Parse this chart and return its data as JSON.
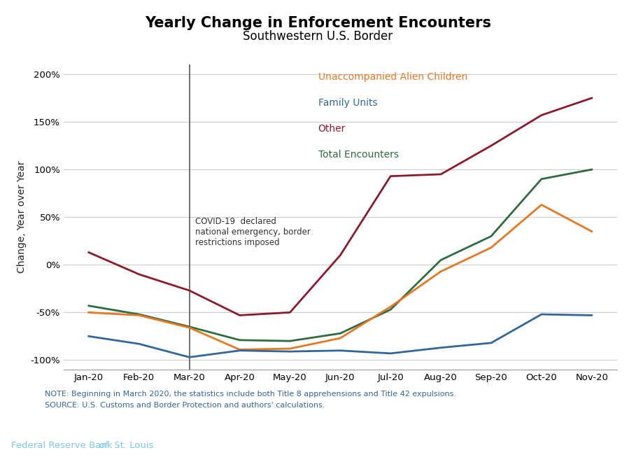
{
  "title": "Yearly Change in Enforcement Encounters",
  "subtitle": "Southwestern U.S. Border",
  "ylabel": "Change, Year over Year",
  "ylim": [
    -1.1,
    2.1
  ],
  "yticks": [
    -1.0,
    -0.5,
    0.0,
    0.5,
    1.0,
    1.5,
    2.0
  ],
  "months": [
    "Jan-20",
    "Feb-20",
    "Mar-20",
    "Apr-20",
    "May-20",
    "Jun-20",
    "Jul-20",
    "Aug-20",
    "Sep-20",
    "Oct-20",
    "Nov-20"
  ],
  "unaccompanied": [
    -0.5,
    -0.53,
    -0.66,
    -0.89,
    -0.88,
    -0.77,
    -0.44,
    -0.07,
    0.18,
    0.63,
    0.35
  ],
  "family_units": [
    -0.75,
    -0.83,
    -0.97,
    -0.9,
    -0.91,
    -0.9,
    -0.93,
    -0.87,
    -0.82,
    -0.52,
    -0.53
  ],
  "other": [
    0.13,
    -0.1,
    -0.27,
    -0.53,
    -0.5,
    0.1,
    0.93,
    0.95,
    1.25,
    1.57,
    1.75
  ],
  "total": [
    -0.43,
    -0.52,
    -0.65,
    -0.79,
    -0.8,
    -0.72,
    -0.47,
    0.05,
    0.3,
    0.9,
    1.0
  ],
  "colors": {
    "unaccompanied": "#E87722",
    "family_units": "#336699",
    "other": "#8B1A2D",
    "total": "#2E6B3E"
  },
  "vline_x": 2,
  "vline_label": "COVID-19  declared\nnational emergency, border\nrestrictions imposed",
  "note_line1": "NOTE: Beginning in March 2020, the statistics include both Title 8 apprehensions and Title 42 expulsions.",
  "note_line2": "SOURCE: U.S. Customs and Border Protection and authors' calculations.",
  "footer_text_normal1": "Federal Reserve Bank ",
  "footer_text_italic": "of",
  "footer_text_normal2": " St. Louis",
  "footer_bg": "#1B3A57",
  "footer_text_color": "#7EC8E3",
  "note_color": "#336699",
  "legend_labels": [
    "Unaccompanied Alien Children",
    "Family Units",
    "Other",
    "Total Encounters"
  ],
  "legend_colors": [
    "#E87722",
    "#336699",
    "#8B1A2D",
    "#2E6B3E"
  ]
}
